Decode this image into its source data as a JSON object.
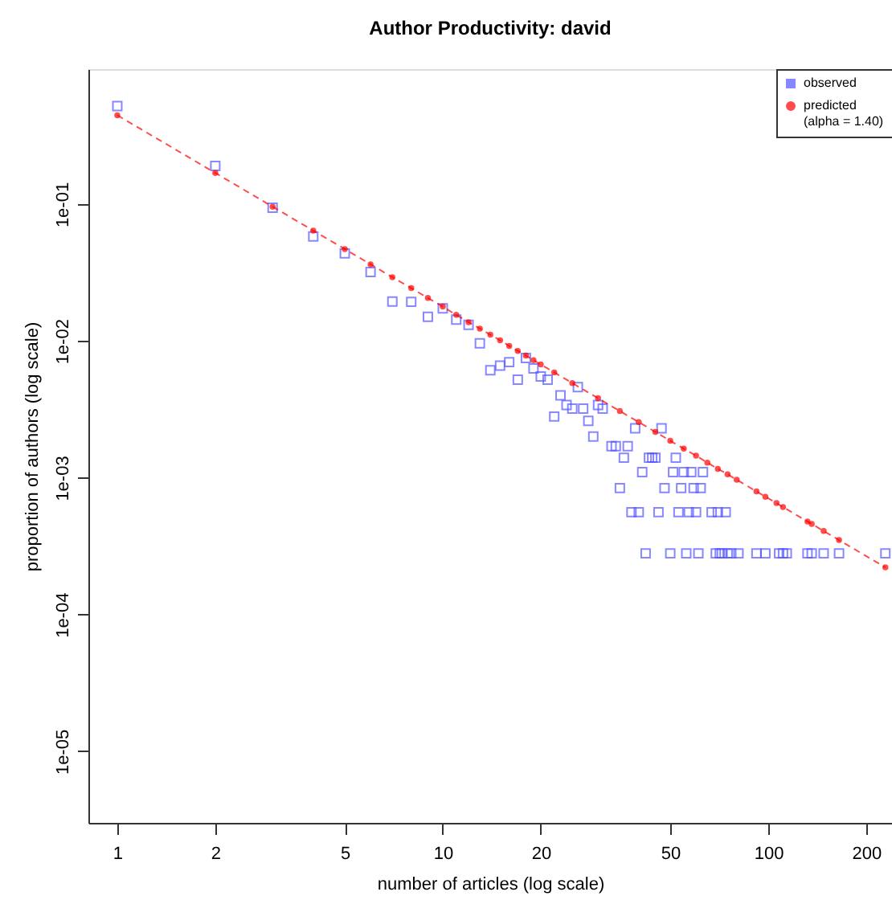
{
  "chart_data": {
    "type": "scatter",
    "title": "Author Productivity: david",
    "xlabel": "number of articles (log scale)",
    "ylabel": "proportion of authors (log scale)",
    "log": "xy",
    "legend": "top right",
    "xlim": [
      0.815,
      240
    ],
    "ylim": [
      3e-06,
      0.97
    ],
    "xticks": [
      1,
      2,
      5,
      10,
      20,
      50,
      100,
      200
    ],
    "yticks": [
      {
        "value": 1e-05,
        "label": "1e-05"
      },
      {
        "value": 0.0001,
        "label": "1e-04"
      },
      {
        "value": 0.001,
        "label": "1e-03"
      },
      {
        "value": 0.01,
        "label": "1e-02"
      },
      {
        "value": 0.1,
        "label": "1e-01"
      }
    ],
    "series": [
      {
        "name": "observed",
        "marker": "square",
        "color": "#5555ff",
        "x": [
          1,
          2,
          3,
          4,
          5,
          6,
          7,
          8,
          9,
          10,
          11,
          12,
          13,
          14,
          15,
          16,
          17,
          18,
          19,
          20,
          21,
          22,
          23,
          24,
          25,
          26,
          27,
          28,
          29,
          30,
          31,
          33,
          34,
          35,
          36,
          37,
          38,
          39,
          40,
          41,
          42,
          43,
          44,
          45,
          46,
          47,
          48,
          50,
          51,
          52,
          53,
          54,
          55,
          56,
          57,
          58,
          59,
          60,
          61,
          62,
          63,
          67,
          69,
          70,
          71,
          72,
          74,
          75,
          77,
          81,
          92,
          98,
          108,
          111,
          114,
          132,
          136,
          148,
          165,
          229
        ],
        "values": [
          0.52,
          0.19,
          0.094,
          0.058,
          0.0436,
          0.0319,
          0.0194,
          0.0193,
          0.015,
          0.0173,
          0.0143,
          0.0131,
          0.0096,
          0.0061,
          0.0066,
          0.007,
          0.0052,
          0.0075,
          0.0063,
          0.0055,
          0.0052,
          0.0028,
          0.004,
          0.0034,
          0.0032,
          0.0046,
          0.0032,
          0.0026,
          0.002,
          0.0034,
          0.0032,
          0.0017,
          0.0017,
          0.00084,
          0.0014,
          0.0017,
          0.00056,
          0.0023,
          0.00056,
          0.0011,
          0.00028,
          0.0014,
          0.0014,
          0.0014,
          0.00056,
          0.0023,
          0.00084,
          0.00028,
          0.0011,
          0.0014,
          0.00056,
          0.00084,
          0.0011,
          0.00028,
          0.00056,
          0.0011,
          0.00084,
          0.00056,
          0.00028,
          0.00084,
          0.0011,
          0.00056,
          0.00028,
          0.00056,
          0.00028,
          0.00028,
          0.00056,
          0.00028,
          0.00028,
          0.00028,
          0.00028,
          0.00028,
          0.00028,
          0.00028,
          0.00028,
          0.00028,
          0.00028,
          0.00028,
          0.00028,
          0.00028
        ]
      },
      {
        "name": "predicted\n(alpha = 1.40)",
        "type": "line",
        "marker": "circle",
        "line_style": "dashed",
        "color": "#ff0000",
        "x": [
          1,
          2,
          3,
          4,
          5,
          6,
          7,
          8,
          9,
          10,
          11,
          12,
          13,
          14,
          15,
          16,
          17,
          18,
          19,
          20,
          22,
          25,
          30,
          35,
          40,
          45,
          50,
          55,
          60,
          65,
          70,
          75,
          80,
          92,
          98,
          106,
          111,
          132,
          136,
          148,
          165,
          229
        ],
        "values": [
          0.446,
          0.169,
          0.0958,
          0.064,
          0.0469,
          0.0363,
          0.0292,
          0.0243,
          0.0206,
          0.0178,
          0.0155,
          0.0137,
          0.0123,
          0.0111,
          0.0101,
          0.00919,
          0.00845,
          0.0078,
          0.00723,
          0.00673,
          0.00589,
          0.00492,
          0.00381,
          0.00307,
          0.00255,
          0.00216,
          0.00186,
          0.00163,
          0.00145,
          0.00129,
          0.00116,
          0.00106,
          0.000966,
          0.000794,
          0.000726,
          0.000652,
          0.00061,
          0.000479,
          0.000459,
          0.000408,
          0.00035,
          0.000221
        ]
      }
    ]
  }
}
